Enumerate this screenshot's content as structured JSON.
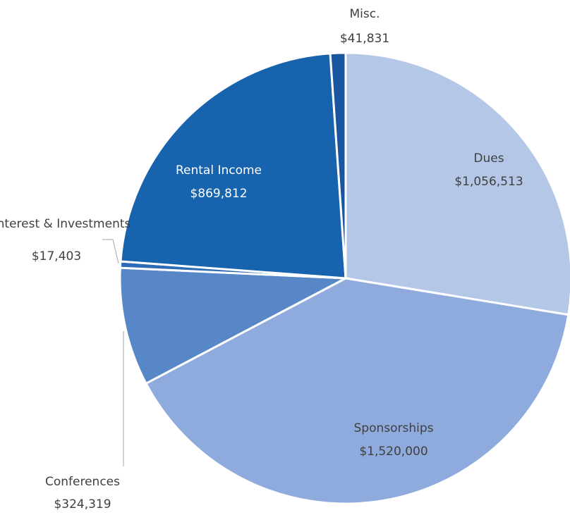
{
  "chart_data": {
    "type": "pie",
    "categories": [
      "Dues",
      "Sponsorships",
      "Conferences",
      "Interest & Investments",
      "Rental Income",
      "Misc."
    ],
    "values": [
      1056513,
      1520000,
      324319,
      17403,
      869812,
      41831
    ],
    "value_labels": [
      "$1,056,513",
      "$1,520,000",
      "$324,319",
      "$17,403",
      "$869,812",
      "$41,831"
    ],
    "colors": [
      "#b4c7e7",
      "#8faadc",
      "#5787c6",
      "#2e6bb5",
      "#1763ae",
      "#1a55a0"
    ]
  }
}
